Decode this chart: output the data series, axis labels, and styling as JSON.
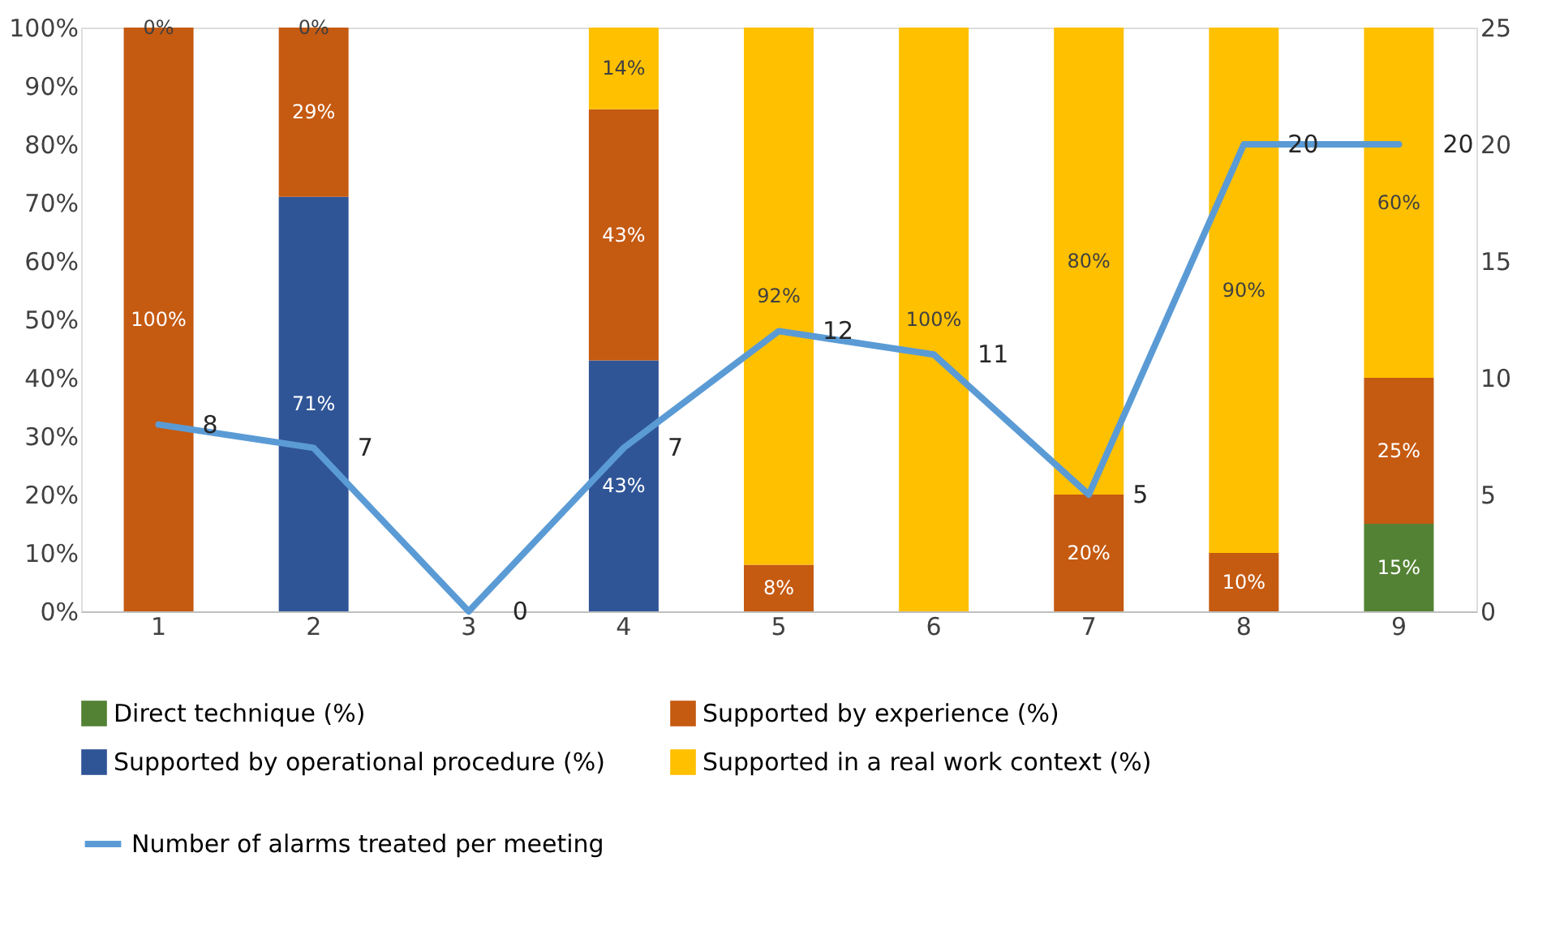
{
  "chart_data": {
    "type": "bar",
    "stacked": true,
    "categories": [
      "1",
      "2",
      "3",
      "4",
      "5",
      "6",
      "7",
      "8",
      "9"
    ],
    "series": [
      {
        "name": "Direct technique (%)",
        "color": "#548235",
        "values": [
          null,
          null,
          null,
          null,
          null,
          null,
          null,
          null,
          15
        ],
        "value_labels": [
          null,
          null,
          null,
          null,
          null,
          null,
          null,
          null,
          "15%"
        ]
      },
      {
        "name": "Supported by operational procedure (%)",
        "color": "#2f5597",
        "values": [
          null,
          71,
          null,
          43,
          null,
          null,
          null,
          null,
          null
        ],
        "value_labels": [
          null,
          "71%",
          null,
          "43%",
          null,
          null,
          null,
          null,
          null
        ]
      },
      {
        "name": "Supported by experience (%)",
        "color": "#c55a11",
        "values": [
          100,
          29,
          null,
          43,
          8,
          null,
          20,
          10,
          25
        ],
        "value_labels": [
          "100%",
          "29%",
          null,
          "43%",
          "8%",
          null,
          "20%",
          "10%",
          "25%"
        ]
      },
      {
        "name": "Supported in a real work context (%)",
        "color": "#ffc000",
        "values": [
          0,
          0,
          null,
          14,
          92,
          100,
          80,
          90,
          60
        ],
        "value_labels": [
          "0%",
          "0%",
          null,
          "14%",
          "92%",
          "100%",
          "80%",
          "90%",
          "60%"
        ]
      },
      {
        "name": "Number of alarms treated per meeting",
        "type": "line",
        "axis": "y2",
        "color": "#5b9bd5",
        "values": [
          8,
          7,
          0,
          7,
          12,
          11,
          5,
          20,
          20
        ],
        "value_labels": [
          "8",
          "7",
          "0",
          "7",
          "12",
          "11",
          "5",
          "20",
          "20"
        ]
      }
    ],
    "ylim": [
      0,
      100
    ],
    "yticks": [
      {
        "value": 0,
        "label": "0%"
      },
      {
        "value": 10,
        "label": "10%"
      },
      {
        "value": 20,
        "label": "20%"
      },
      {
        "value": 30,
        "label": "30%"
      },
      {
        "value": 40,
        "label": "40%"
      },
      {
        "value": 50,
        "label": "50%"
      },
      {
        "value": 60,
        "label": "60%"
      },
      {
        "value": 70,
        "label": "70%"
      },
      {
        "value": 80,
        "label": "80%"
      },
      {
        "value": 90,
        "label": "90%"
      },
      {
        "value": 100,
        "label": "100%"
      }
    ],
    "y2lim": [
      0,
      25
    ],
    "y2ticks": [
      0,
      5,
      10,
      15,
      20,
      25
    ],
    "legend": "bottom",
    "grid": false
  }
}
